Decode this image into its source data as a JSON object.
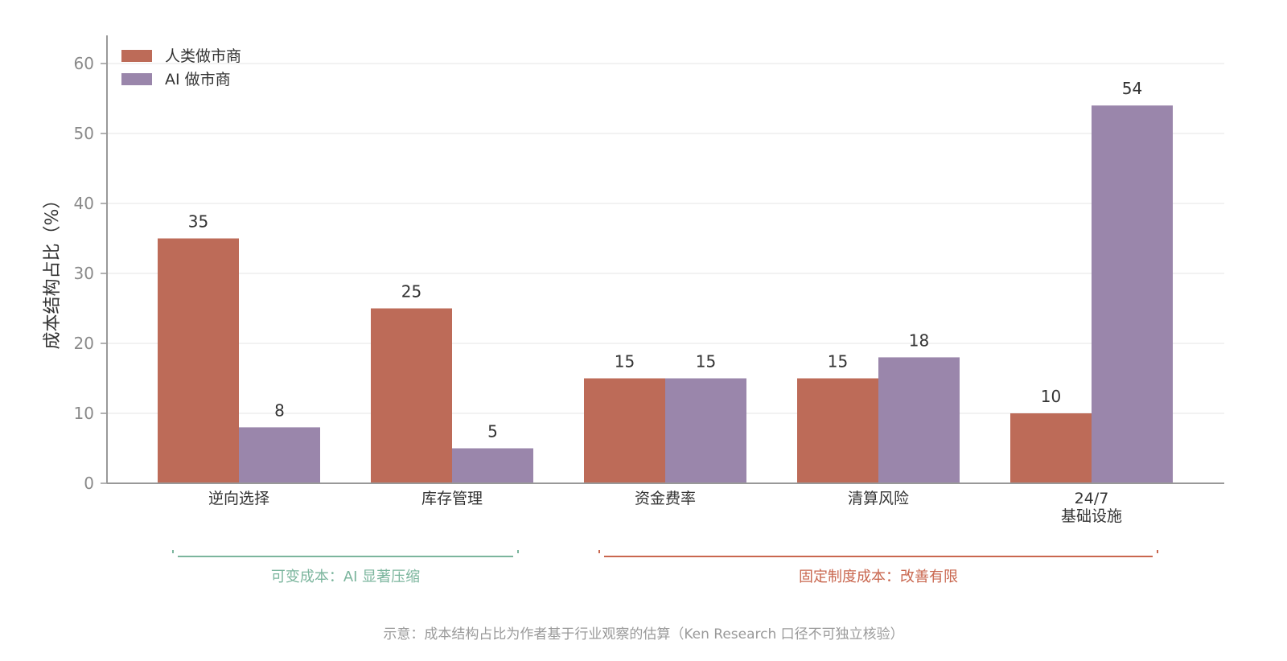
{
  "colors": {
    "human": "#bd6b58",
    "ai": "#9a86ab",
    "variable_group": "#7bb59d",
    "fixed_group": "#c9674f",
    "grid": "#e6e6e6",
    "axis": "#999999"
  },
  "chart_data": {
    "type": "bar",
    "title": "",
    "xlabel": "",
    "ylabel": "成本结构占比（%）",
    "ylim": [
      0,
      60
    ],
    "yticks": [
      0,
      10,
      20,
      30,
      40,
      50,
      60
    ],
    "grid": true,
    "legend_position": "top-left",
    "categories": [
      "逆向选择",
      "库存管理",
      "资金费率",
      "清算风险",
      "24/7\n基础设施"
    ],
    "series": [
      {
        "name": "人类做市商",
        "color_key": "human",
        "values": [
          35,
          25,
          15,
          15,
          10
        ]
      },
      {
        "name": "AI 做市商",
        "color_key": "ai",
        "values": [
          8,
          5,
          15,
          18,
          54
        ]
      }
    ],
    "groups": [
      {
        "label": "可变成本：AI 显著压缩",
        "color_key": "variable_group",
        "from": 0,
        "to": 1
      },
      {
        "label": "固定制度成本：改善有限",
        "color_key": "fixed_group",
        "from": 2,
        "to": 4
      }
    ]
  },
  "footnote": "示意：成本结构占比为作者基于行业观察的估算（Ken Research 口径不可独立核验）"
}
